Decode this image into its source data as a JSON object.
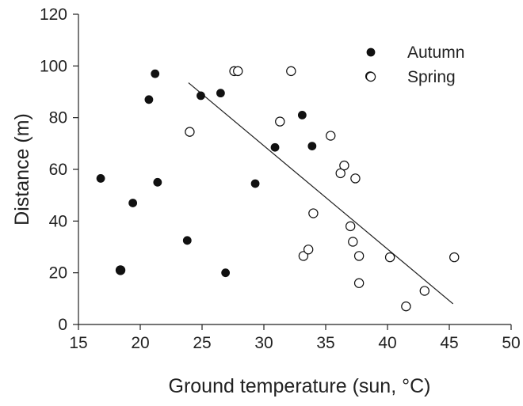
{
  "chart_data": {
    "type": "scatter",
    "title": "",
    "xlabel": "Ground temperature (sun, °C)",
    "ylabel": "Distance (m)",
    "xlim": [
      15,
      50
    ],
    "ylim": [
      0,
      120
    ],
    "xticks": [
      15,
      20,
      25,
      30,
      35,
      40,
      45,
      50
    ],
    "yticks": [
      0,
      20,
      40,
      60,
      80,
      100,
      120
    ],
    "grid": false,
    "legend_position": "top-right",
    "series": [
      {
        "name": "Autumn",
        "marker": "filled-circle",
        "points": [
          [
            16.8,
            56.5
          ],
          [
            19.4,
            47
          ],
          [
            20.7,
            87
          ],
          [
            21.2,
            97
          ],
          [
            21.4,
            55
          ],
          [
            23.8,
            32.5
          ],
          [
            24.9,
            88.5
          ],
          [
            26.5,
            89.5
          ],
          [
            26.9,
            20
          ],
          [
            29.3,
            54.5
          ],
          [
            30.9,
            68.5
          ],
          [
            33.1,
            81
          ],
          [
            33.9,
            69
          ],
          [
            18.4,
            21
          ]
        ]
      },
      {
        "name": "Spring",
        "marker": "open-circle",
        "points": [
          [
            18.4,
            21
          ],
          [
            24.0,
            74.5
          ],
          [
            27.6,
            98
          ],
          [
            27.9,
            98
          ],
          [
            31.3,
            78.5
          ],
          [
            32.2,
            98
          ],
          [
            33.2,
            26.5
          ],
          [
            33.6,
            29
          ],
          [
            34.0,
            43
          ],
          [
            35.4,
            73
          ],
          [
            36.2,
            58.5
          ],
          [
            36.5,
            61.5
          ],
          [
            37.0,
            38
          ],
          [
            37.2,
            32
          ],
          [
            37.4,
            56.5
          ],
          [
            37.7,
            26.5
          ],
          [
            37.7,
            16
          ],
          [
            38.6,
            96
          ],
          [
            40.2,
            26
          ],
          [
            41.5,
            7
          ],
          [
            43.0,
            13
          ],
          [
            45.4,
            26
          ]
        ]
      }
    ],
    "trend_line": {
      "x": [
        23.9,
        45.3
      ],
      "y": [
        93.5,
        8
      ]
    }
  },
  "colors": {
    "axis": "#222222",
    "marker": "#111111",
    "background": "#ffffff"
  }
}
